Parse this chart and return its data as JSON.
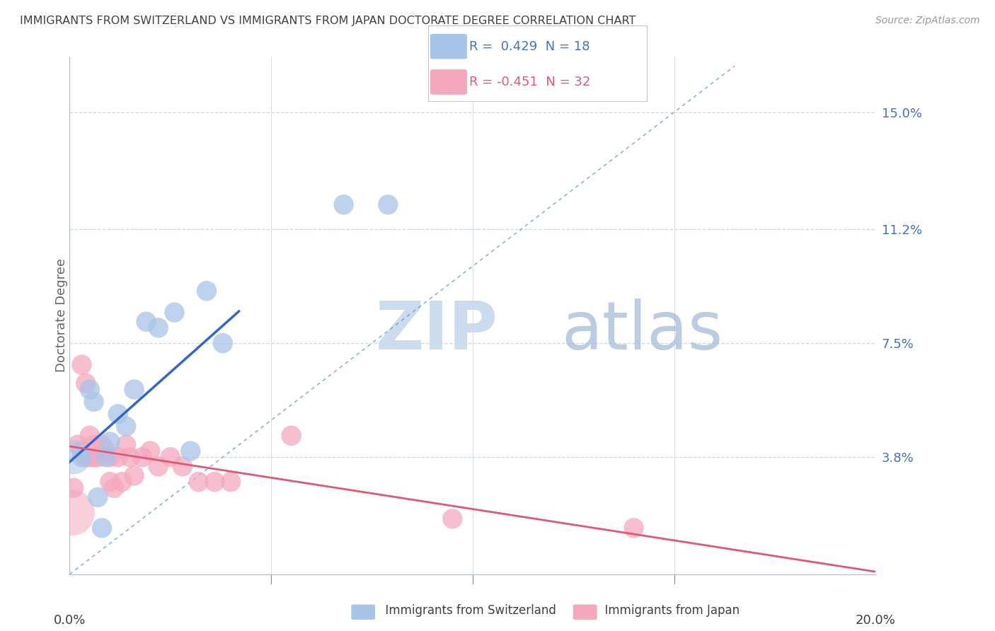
{
  "title": "IMMIGRANTS FROM SWITZERLAND VS IMMIGRANTS FROM JAPAN DOCTORATE DEGREE CORRELATION CHART",
  "source": "Source: ZipAtlas.com",
  "ylabel": "Doctorate Degree",
  "ytick_labels": [
    "15.0%",
    "11.2%",
    "7.5%",
    "3.8%"
  ],
  "ytick_values": [
    0.15,
    0.112,
    0.075,
    0.038
  ],
  "xlim": [
    0.0,
    0.2
  ],
  "ylim": [
    0.0,
    0.165
  ],
  "legend1_r": "0.429",
  "legend1_n": "18",
  "legend2_r": "-0.451",
  "legend2_n": "32",
  "blue_scatter_color": "#a8c4e8",
  "pink_scatter_color": "#f4a8be",
  "blue_line_color": "#3366cc",
  "pink_line_color": "#e05878",
  "diagonal_color": "#8ab0d8",
  "watermark_color": "#ccdcf0",
  "title_color": "#404040",
  "axis_label_color": "#4472c4",
  "legend_text_color_blue": "#4472c4",
  "legend_text_color_pink": "#e05878",
  "swiss_x": [
    0.003,
    0.005,
    0.006,
    0.007,
    0.008,
    0.009,
    0.01,
    0.012,
    0.014,
    0.016,
    0.019,
    0.022,
    0.026,
    0.03,
    0.034,
    0.038,
    0.068,
    0.079
  ],
  "swiss_y": [
    0.038,
    0.06,
    0.056,
    0.025,
    0.015,
    0.038,
    0.043,
    0.052,
    0.048,
    0.06,
    0.082,
    0.08,
    0.085,
    0.04,
    0.092,
    0.075,
    0.12,
    0.12
  ],
  "japan_x": [
    0.001,
    0.002,
    0.003,
    0.003,
    0.004,
    0.004,
    0.005,
    0.005,
    0.006,
    0.006,
    0.007,
    0.008,
    0.009,
    0.01,
    0.01,
    0.011,
    0.012,
    0.013,
    0.014,
    0.015,
    0.016,
    0.018,
    0.02,
    0.022,
    0.025,
    0.028,
    0.032,
    0.036,
    0.04,
    0.055,
    0.095,
    0.14
  ],
  "japan_y": [
    0.028,
    0.042,
    0.04,
    0.068,
    0.038,
    0.062,
    0.045,
    0.038,
    0.042,
    0.038,
    0.038,
    0.042,
    0.04,
    0.038,
    0.03,
    0.028,
    0.038,
    0.03,
    0.042,
    0.038,
    0.032,
    0.038,
    0.04,
    0.035,
    0.038,
    0.035,
    0.03,
    0.03,
    0.03,
    0.045,
    0.018,
    0.015
  ]
}
